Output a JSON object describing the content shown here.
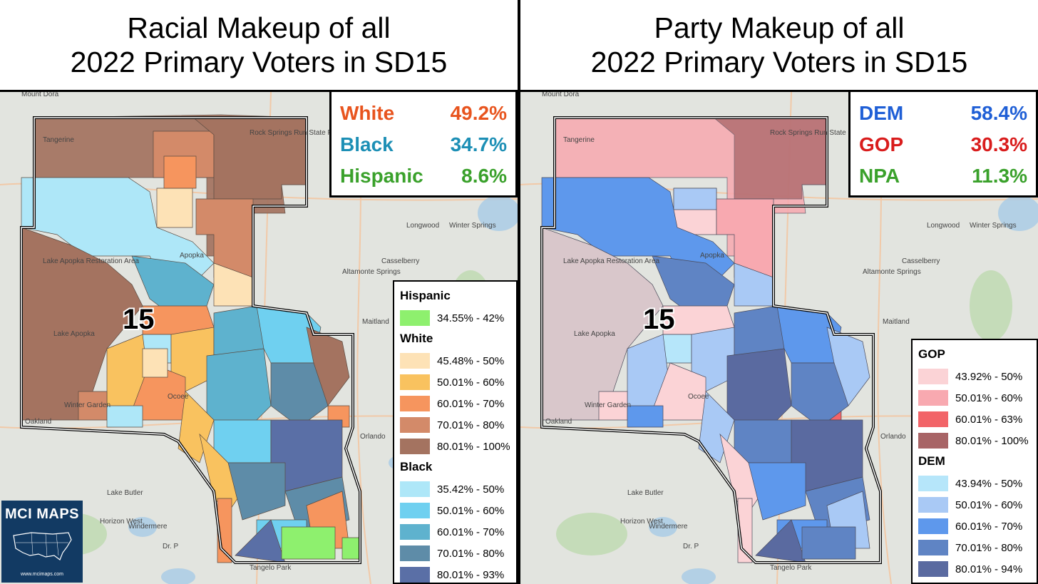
{
  "left": {
    "title_line1": "Racial Makeup of all",
    "title_line2": "2022 Primary Voters in SD15",
    "stats": [
      {
        "label": "White",
        "value": "49.2%",
        "color": "#e8541e"
      },
      {
        "label": "Black",
        "value": "34.7%",
        "color": "#1c8fb5"
      },
      {
        "label": "Hispanic",
        "value": "8.6%",
        "color": "#3aa12b"
      }
    ],
    "district_label": "15",
    "legend": {
      "groups": [
        {
          "heading": "Hispanic",
          "items": [
            {
              "label": "34.55% - 42%",
              "color": "#8ef06e"
            }
          ]
        },
        {
          "heading": "White",
          "items": [
            {
              "label": "45.48% - 50%",
              "color": "#fde2b6"
            },
            {
              "label": "50.01% - 60%",
              "color": "#f9c25f"
            },
            {
              "label": "60.01% - 70%",
              "color": "#f6955e"
            },
            {
              "label": "70.01% - 80%",
              "color": "#d38a69"
            },
            {
              "label": "80.01% - 100%",
              "color": "#a47360"
            }
          ]
        },
        {
          "heading": "Black",
          "items": [
            {
              "label": "35.42% - 50%",
              "color": "#aee7f8"
            },
            {
              "label": "50.01% - 60%",
              "color": "#6fd0f0"
            },
            {
              "label": "60.01% - 70%",
              "color": "#5eb2ce"
            },
            {
              "label": "70.01% - 80%",
              "color": "#5e8ca8"
            },
            {
              "label": "80.01% - 93%",
              "color": "#5a6fa6"
            }
          ]
        }
      ]
    },
    "logo_text": "MCI MAPS",
    "logo_url": "www.mcimaps.com"
  },
  "right": {
    "title_line1": "Party Makeup of all",
    "title_line2": "2022 Primary Voters in SD15",
    "stats": [
      {
        "label": "DEM",
        "value": "58.4%",
        "color": "#1f5fd6"
      },
      {
        "label": "GOP",
        "value": "30.3%",
        "color": "#d91c1c"
      },
      {
        "label": "NPA",
        "value": "11.3%",
        "color": "#3aa12b"
      }
    ],
    "district_label": "15",
    "legend": {
      "groups": [
        {
          "heading": "GOP",
          "items": [
            {
              "label": "43.92% - 50%",
              "color": "#fbd3d6"
            },
            {
              "label": "50.01% - 60%",
              "color": "#f8a9b0"
            },
            {
              "label": "60.01% - 63%",
              "color": "#f26468"
            },
            {
              "label": "80.01% - 100%",
              "color": "#a86466"
            }
          ]
        },
        {
          "heading": "DEM",
          "items": [
            {
              "label": "43.94% - 50%",
              "color": "#b6e6fa"
            },
            {
              "label": "50.01% - 60%",
              "color": "#a9c9f5"
            },
            {
              "label": "60.01% - 70%",
              "color": "#5e98ec"
            },
            {
              "label": "70.01% - 80%",
              "color": "#5f84c4"
            },
            {
              "label": "80.01% - 94%",
              "color": "#5a6aa0"
            }
          ]
        }
      ]
    }
  },
  "map_places": [
    "Mount Dora",
    "Tangerine",
    "Rock Springs Run State Preserve",
    "Lake Apopka Restoration Area",
    "Apopka",
    "Lake Apopka",
    "Longwood",
    "Winter Springs",
    "Altamonte Springs",
    "Casselberry",
    "Maitland",
    "Ocoee",
    "Winter Garden",
    "Oakland",
    "Windermere",
    "Lake Butler",
    "Horizon West",
    "Orlando",
    "Tangelo Park",
    "Dr. P"
  ]
}
